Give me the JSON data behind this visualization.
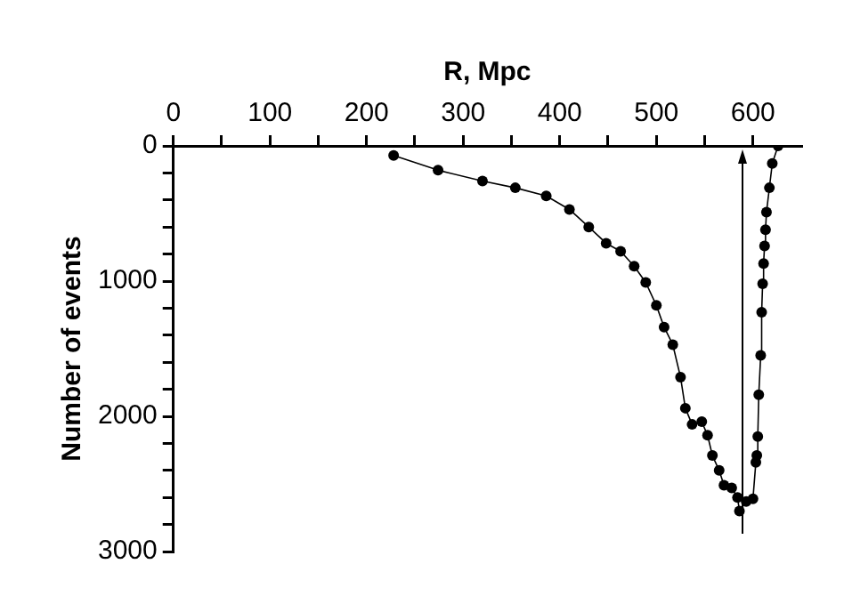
{
  "chart_data": {
    "type": "line",
    "xlabel": "R, Mpc",
    "ylabel": "Number of events",
    "series": [
      {
        "color": "#000000",
        "x": [
          228,
          274,
          320,
          354,
          386,
          410,
          430,
          448,
          463,
          477,
          489,
          500,
          508,
          517,
          525,
          530,
          537,
          547,
          553,
          558,
          565,
          570,
          578,
          584,
          586,
          593,
          600,
          603,
          604,
          605,
          606,
          608,
          609,
          610,
          611,
          612,
          613,
          614,
          617,
          620,
          626
        ],
        "values": [
          70,
          180,
          260,
          310,
          370,
          470,
          600,
          720,
          780,
          890,
          1010,
          1180,
          1340,
          1470,
          1710,
          1940,
          2060,
          2040,
          2140,
          2290,
          2400,
          2510,
          2530,
          2600,
          2700,
          2630,
          2610,
          2340,
          2290,
          2150,
          1840,
          1550,
          1230,
          1020,
          870,
          740,
          620,
          490,
          310,
          130,
          0
        ]
      }
    ],
    "xlim": [
      0,
      650
    ],
    "xticks": [
      0,
      {
        "value": 50,
        "label": null
      },
      100,
      {
        "value": 150,
        "label": null
      },
      200,
      {
        "value": 250,
        "label": null
      },
      300,
      {
        "value": 350,
        "label": null
      },
      400,
      {
        "value": 450,
        "label": null
      },
      500,
      {
        "value": 550,
        "label": null
      },
      600
    ],
    "ylim": [
      3000,
      0
    ],
    "yticks": [
      0,
      {
        "value": 200,
        "label": null
      },
      {
        "value": 400,
        "label": null
      },
      {
        "value": 600,
        "label": null
      },
      {
        "value": 800,
        "label": null
      },
      1000,
      {
        "value": 1200,
        "label": null
      },
      {
        "value": 1400,
        "label": null
      },
      {
        "value": 1600,
        "label": null
      },
      {
        "value": 1800,
        "label": null
      },
      2000,
      {
        "value": 2200,
        "label": null
      },
      {
        "value": 2400,
        "label": null
      },
      {
        "value": 2600,
        "label": null
      },
      {
        "value": 2800,
        "label": null
      },
      3000
    ],
    "ref_lines": [
      {
        "axis": "x",
        "value": 590,
        "color": "#000000"
      }
    ],
    "grid": false,
    "legend": false,
    "marker": "circle",
    "line_style": "solid"
  }
}
